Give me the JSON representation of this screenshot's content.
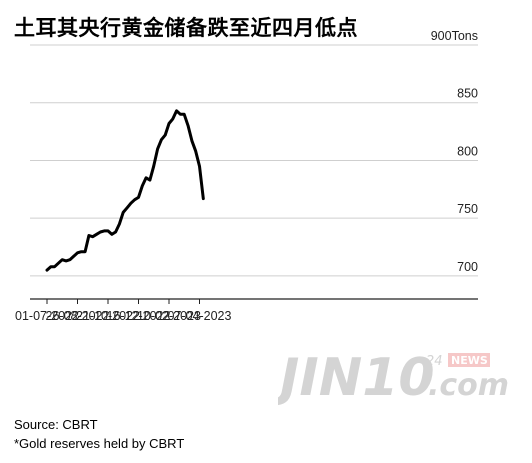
{
  "title": "土耳其央行黄金储备跌至近四月低点",
  "source": "Source: CBRT",
  "footnote": "*Gold reserves held by CBRT",
  "watermark": {
    "brand": "JIN10",
    "suffix": ".com",
    "badge_num": "24",
    "badge_text": "NEWS"
  },
  "chart_data": {
    "type": "line",
    "yunit": "Tons",
    "ylim": [
      680,
      900
    ],
    "yticks": [
      700,
      750,
      800,
      850,
      900
    ],
    "ytick_labels": [
      "700",
      "750",
      "800",
      "850",
      "900Tons"
    ],
    "xticks": [
      "01-07-2022",
      "26-08-2022",
      "21-10-2022",
      "16-12-2022",
      "10-02-2023",
      "07-04-2023"
    ],
    "grid": true,
    "series": [
      {
        "color": "#000000",
        "x": [
          "2022-07-01",
          "2022-07-08",
          "2022-07-15",
          "2022-07-22",
          "2022-07-29",
          "2022-08-05",
          "2022-08-12",
          "2022-08-19",
          "2022-08-26",
          "2022-09-02",
          "2022-09-09",
          "2022-09-16",
          "2022-09-23",
          "2022-09-30",
          "2022-10-07",
          "2022-10-14",
          "2022-10-21",
          "2022-10-28",
          "2022-11-04",
          "2022-11-11",
          "2022-11-18",
          "2022-11-25",
          "2022-12-02",
          "2022-12-09",
          "2022-12-16",
          "2022-12-23",
          "2022-12-30",
          "2023-01-06",
          "2023-01-13",
          "2023-01-20",
          "2023-01-27",
          "2023-02-03",
          "2023-02-10",
          "2023-02-17",
          "2023-02-24",
          "2023-03-03",
          "2023-03-10",
          "2023-03-17",
          "2023-03-24",
          "2023-03-31",
          "2023-04-07",
          "2023-04-14"
        ],
        "y": [
          705,
          708,
          708,
          711,
          714,
          713,
          714,
          717,
          720,
          721,
          721,
          735,
          734,
          736,
          738,
          739,
          739,
          736,
          738,
          745,
          755,
          759,
          763,
          766,
          768,
          778,
          785,
          783,
          795,
          810,
          818,
          822,
          832,
          836,
          843,
          840,
          840,
          830,
          817,
          808,
          795,
          767
        ]
      }
    ]
  }
}
